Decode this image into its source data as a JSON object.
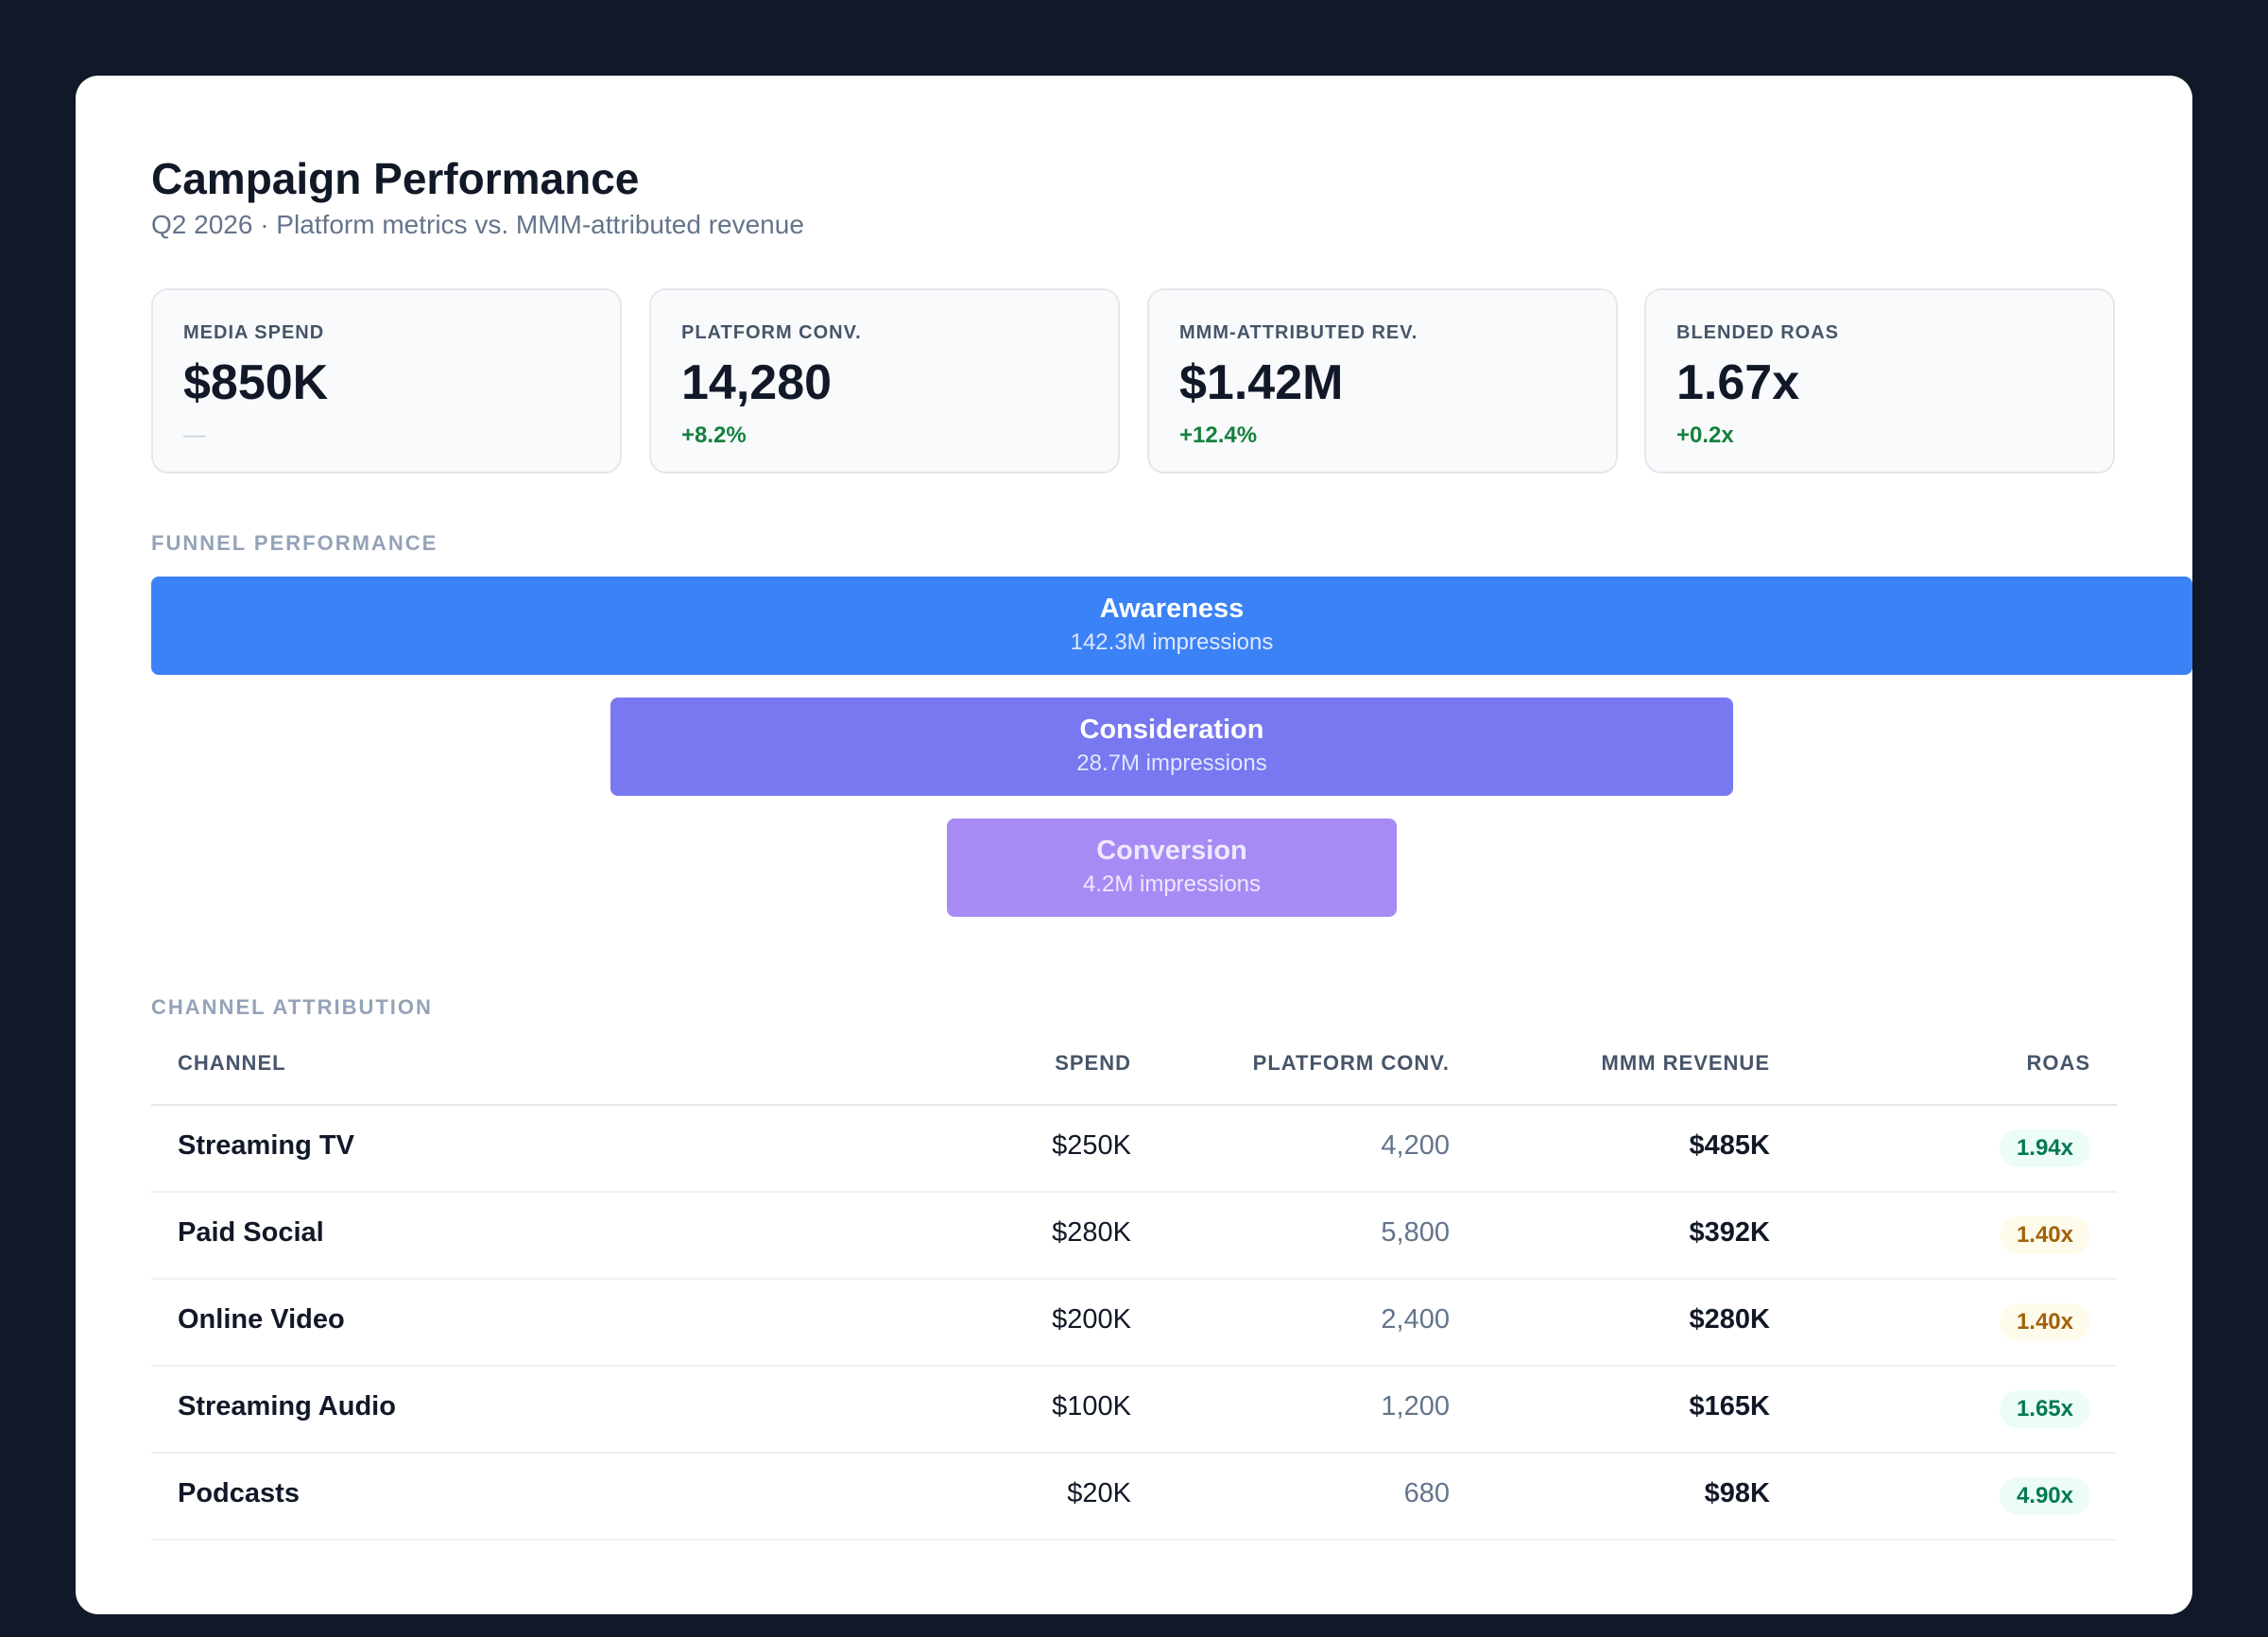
{
  "header": {
    "title": "Campaign Performance",
    "subtitle": "Q2 2026 · Platform metrics vs. MMM-attributed revenue"
  },
  "kpis": [
    {
      "label": "MEDIA SPEND",
      "value": "$850K",
      "delta": "—"
    },
    {
      "label": "PLATFORM CONV.",
      "value": "14,280",
      "delta": "+8.2%"
    },
    {
      "label": "MMM-ATTRIBUTED REV.",
      "value": "$1.42M",
      "delta": "+12.4%"
    },
    {
      "label": "BLENDED ROAS",
      "value": "1.67x",
      "delta": "+0.2x"
    }
  ],
  "funnel": {
    "section_label": "FUNNEL PERFORMANCE",
    "stages": [
      {
        "name": "Awareness",
        "sub": "142.3M impressions",
        "color": "#3b82f6"
      },
      {
        "name": "Consideration",
        "sub": "28.7M impressions",
        "color": "#7878f0"
      },
      {
        "name": "Conversion",
        "sub": "4.2M impressions",
        "color": "#a78bf5"
      }
    ]
  },
  "attribution": {
    "section_label": "CHANNEL ATTRIBUTION",
    "columns": [
      "CHANNEL",
      "SPEND",
      "PLATFORM CONV.",
      "MMM REVENUE",
      "ROAS"
    ],
    "rows": [
      {
        "channel": "Streaming TV",
        "spend": "$250K",
        "conv": "4,200",
        "revenue": "$485K",
        "roas": "1.94x",
        "roas_status": "good"
      },
      {
        "channel": "Paid Social",
        "spend": "$280K",
        "conv": "5,800",
        "revenue": "$392K",
        "roas": "1.40x",
        "roas_status": "warn"
      },
      {
        "channel": "Online Video",
        "spend": "$200K",
        "conv": "2,400",
        "revenue": "$280K",
        "roas": "1.40x",
        "roas_status": "warn"
      },
      {
        "channel": "Streaming Audio",
        "spend": "$100K",
        "conv": "1,200",
        "revenue": "$165K",
        "roas": "1.65x",
        "roas_status": "good"
      },
      {
        "channel": "Podcasts",
        "spend": "$20K",
        "conv": "680",
        "revenue": "$98K",
        "roas": "4.90x",
        "roas_status": "good"
      }
    ]
  },
  "colors": {
    "background": "#111827",
    "card": "#ffffff",
    "positive": "#15803d",
    "roas_good_bg": "#ecfdf5",
    "roas_warn_bg": "#fffbeb"
  }
}
